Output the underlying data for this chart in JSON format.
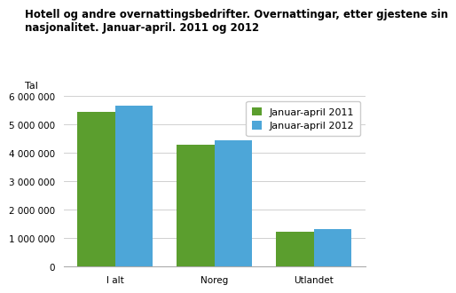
{
  "title_line1": "Hotell og andre overnattingsbedrifter. Overnattingar, etter gjestene sin",
  "title_line2": "nasjonalitet. Januar-april. 2011 og 2012",
  "ylabel": "Tal",
  "categories": [
    "I alt",
    "Noreg",
    "Utlandet"
  ],
  "series": [
    {
      "label": "Januar-april 2011",
      "color": "#5b9e2e",
      "values": [
        5450000,
        4300000,
        1220000
      ]
    },
    {
      "label": "Januar-april 2012",
      "color": "#4da6d8",
      "values": [
        5660000,
        4440000,
        1310000
      ]
    }
  ],
  "ylim": [
    0,
    6000000
  ],
  "yticks": [
    0,
    1000000,
    2000000,
    3000000,
    4000000,
    5000000,
    6000000
  ],
  "background_color": "#ffffff",
  "plot_bg_color": "#ffffff",
  "grid_color": "#d0d0d0",
  "bar_width": 0.38,
  "title_fontsize": 8.5,
  "axis_label_fontsize": 8,
  "tick_fontsize": 7.5,
  "legend_fontsize": 8
}
